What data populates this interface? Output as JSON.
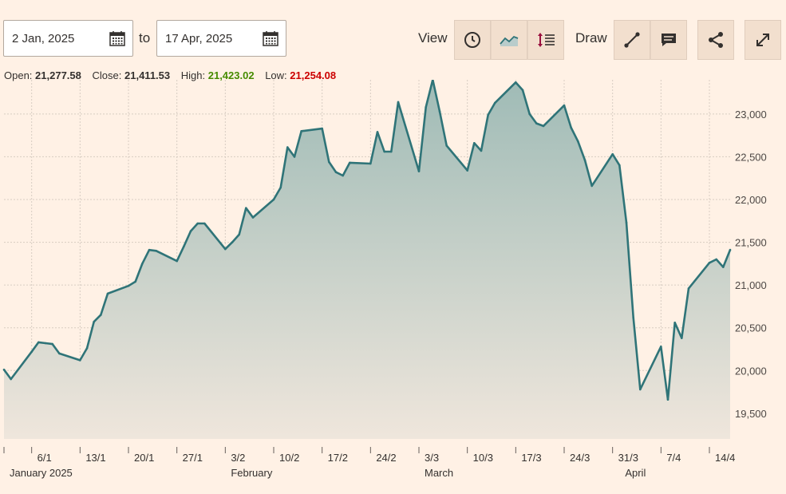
{
  "toolbar": {
    "from_date": "2 Jan, 2025",
    "to_label": "to",
    "to_date": "17 Apr, 2025",
    "view_label": "View",
    "draw_label": "Draw",
    "view_icons": [
      "clock-icon",
      "line-chart-icon",
      "indicators-icon"
    ],
    "draw_icons": [
      "draw-line-icon",
      "annotation-icon"
    ],
    "share_icon": "share-icon",
    "expand_icon": "expand-icon"
  },
  "stats": {
    "open_label": "Open:",
    "open": "21,277.58",
    "close_label": "Close:",
    "close": "21,411.53",
    "high_label": "High:",
    "high": "21,423.02",
    "low_label": "Low:",
    "low": "21,254.08"
  },
  "colors": {
    "background": "#fff1e5",
    "line": "#2f7478",
    "area_top": "#9fbbb6",
    "area_bottom": "#efe6dc",
    "grid": "#d8cdc2",
    "high": "#458b00",
    "low": "#cc0000"
  },
  "chart_data": {
    "type": "area",
    "grid": true,
    "y_axis_position": "right",
    "ylim": [
      19200,
      23400
    ],
    "yticks": [
      19500,
      20000,
      20500,
      21000,
      21500,
      22000,
      22500,
      23000
    ],
    "ytick_labels": [
      "19,500",
      "20,000",
      "20,500",
      "21,000",
      "21,500",
      "22,000",
      "22,500",
      "23,000"
    ],
    "xlim": [
      "2025-01-02",
      "2025-04-17"
    ],
    "xticks": [
      {
        "date": "2025-01-06",
        "label": "6/1"
      },
      {
        "date": "2025-01-13",
        "label": "13/1"
      },
      {
        "date": "2025-01-20",
        "label": "20/1"
      },
      {
        "date": "2025-01-27",
        "label": "27/1"
      },
      {
        "date": "2025-02-03",
        "label": "3/2"
      },
      {
        "date": "2025-02-10",
        "label": "10/2"
      },
      {
        "date": "2025-02-17",
        "label": "17/2"
      },
      {
        "date": "2025-02-24",
        "label": "24/2"
      },
      {
        "date": "2025-03-03",
        "label": "3/3"
      },
      {
        "date": "2025-03-10",
        "label": "10/3"
      },
      {
        "date": "2025-03-17",
        "label": "17/3"
      },
      {
        "date": "2025-03-24",
        "label": "24/3"
      },
      {
        "date": "2025-03-31",
        "label": "31/3"
      },
      {
        "date": "2025-04-07",
        "label": "7/4"
      },
      {
        "date": "2025-04-14",
        "label": "14/4"
      }
    ],
    "month_labels": [
      {
        "date": "2025-01-02",
        "label": "January 2025"
      },
      {
        "date": "2025-02-03",
        "label": "February"
      },
      {
        "date": "2025-03-03",
        "label": "March"
      },
      {
        "date": "2025-04-01",
        "label": "April"
      }
    ],
    "series": [
      {
        "values": [
          [
            "2025-01-02",
            20010
          ],
          [
            "2025-01-03",
            19900
          ],
          [
            "2025-01-06",
            20220
          ],
          [
            "2025-01-07",
            20330
          ],
          [
            "2025-01-08",
            20320
          ],
          [
            "2025-01-09",
            20310
          ],
          [
            "2025-01-10",
            20200
          ],
          [
            "2025-01-13",
            20120
          ],
          [
            "2025-01-14",
            20260
          ],
          [
            "2025-01-15",
            20570
          ],
          [
            "2025-01-16",
            20650
          ],
          [
            "2025-01-17",
            20900
          ],
          [
            "2025-01-20",
            20990
          ],
          [
            "2025-01-21",
            21040
          ],
          [
            "2025-01-22",
            21250
          ],
          [
            "2025-01-23",
            21410
          ],
          [
            "2025-01-24",
            21400
          ],
          [
            "2025-01-27",
            21280
          ],
          [
            "2025-01-28",
            21450
          ],
          [
            "2025-01-29",
            21630
          ],
          [
            "2025-01-30",
            21720
          ],
          [
            "2025-01-31",
            21720
          ],
          [
            "2025-02-03",
            21420
          ],
          [
            "2025-02-04",
            21500
          ],
          [
            "2025-02-05",
            21590
          ],
          [
            "2025-02-06",
            21900
          ],
          [
            "2025-02-07",
            21790
          ],
          [
            "2025-02-10",
            22000
          ],
          [
            "2025-02-11",
            22140
          ],
          [
            "2025-02-12",
            22610
          ],
          [
            "2025-02-13",
            22500
          ],
          [
            "2025-02-14",
            22800
          ],
          [
            "2025-02-17",
            22830
          ],
          [
            "2025-02-18",
            22440
          ],
          [
            "2025-02-19",
            22320
          ],
          [
            "2025-02-20",
            22280
          ],
          [
            "2025-02-21",
            22430
          ],
          [
            "2025-02-24",
            22420
          ],
          [
            "2025-02-25",
            22790
          ],
          [
            "2025-02-26",
            22560
          ],
          [
            "2025-02-27",
            22560
          ],
          [
            "2025-02-28",
            23140
          ],
          [
            "2025-03-03",
            22330
          ],
          [
            "2025-03-04",
            23080
          ],
          [
            "2025-03-05",
            23400
          ],
          [
            "2025-03-06",
            23030
          ],
          [
            "2025-03-07",
            22630
          ],
          [
            "2025-03-10",
            22340
          ],
          [
            "2025-03-11",
            22660
          ],
          [
            "2025-03-12",
            22570
          ],
          [
            "2025-03-13",
            22990
          ],
          [
            "2025-03-14",
            23130
          ],
          [
            "2025-03-17",
            23370
          ],
          [
            "2025-03-18",
            23280
          ],
          [
            "2025-03-19",
            23000
          ],
          [
            "2025-03-20",
            22890
          ],
          [
            "2025-03-21",
            22860
          ],
          [
            "2025-03-24",
            23100
          ],
          [
            "2025-03-25",
            22840
          ],
          [
            "2025-03-26",
            22680
          ],
          [
            "2025-03-27",
            22460
          ],
          [
            "2025-03-28",
            22160
          ],
          [
            "2025-03-31",
            22530
          ],
          [
            "2025-04-01",
            22400
          ],
          [
            "2025-04-02",
            21730
          ],
          [
            "2025-04-03",
            20620
          ],
          [
            "2025-04-04",
            19780
          ],
          [
            "2025-04-07",
            20280
          ],
          [
            "2025-04-08",
            19660
          ],
          [
            "2025-04-09",
            20560
          ],
          [
            "2025-04-10",
            20380
          ],
          [
            "2025-04-11",
            20960
          ],
          [
            "2025-04-14",
            21260
          ],
          [
            "2025-04-15",
            21300
          ],
          [
            "2025-04-16",
            21210
          ],
          [
            "2025-04-17",
            21411
          ]
        ]
      }
    ]
  }
}
